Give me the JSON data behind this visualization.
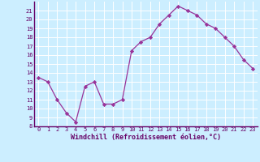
{
  "x": [
    0,
    1,
    2,
    3,
    4,
    5,
    6,
    7,
    8,
    9,
    10,
    11,
    12,
    13,
    14,
    15,
    16,
    17,
    18,
    19,
    20,
    21,
    22,
    23
  ],
  "y": [
    13.5,
    13.0,
    11.0,
    9.5,
    8.5,
    12.5,
    13.0,
    10.5,
    10.5,
    11.0,
    16.5,
    17.5,
    18.0,
    19.5,
    20.5,
    21.5,
    21.0,
    20.5,
    19.5,
    19.0,
    18.0,
    17.0,
    15.5,
    14.5
  ],
  "line_color": "#993399",
  "marker": "D",
  "marker_size": 2.2,
  "bg_color": "#cceeff",
  "grid_color": "#ffffff",
  "xlabel": "Windchill (Refroidissement éolien,°C)",
  "ylabel_ticks": [
    8,
    9,
    10,
    11,
    12,
    13,
    14,
    15,
    16,
    17,
    18,
    19,
    20,
    21
  ],
  "ylim": [
    8,
    22
  ],
  "xlim": [
    -0.5,
    23.5
  ],
  "tick_color": "#660066",
  "spine_color": "#660066",
  "tick_fontsize": 5.0,
  "xlabel_fontsize": 6.0
}
